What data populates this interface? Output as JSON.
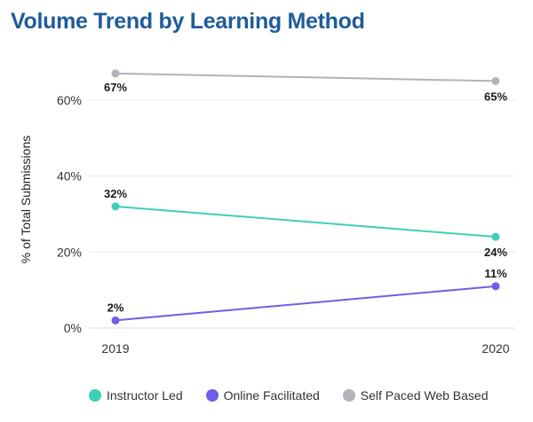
{
  "title": "Volume Trend by Learning Method",
  "chart_data": {
    "type": "line",
    "title": "Volume Trend by Learning Method",
    "xlabel": "",
    "ylabel": "% of Total Submissions",
    "x": [
      "2019",
      "2020"
    ],
    "y_ticks": [
      "0%",
      "20%",
      "40%",
      "60%"
    ],
    "ylim": [
      0,
      70
    ],
    "grid": true,
    "legend_position": "bottom",
    "series": [
      {
        "name": "Instructor Led",
        "color": "#3ecfb4",
        "values": [
          32,
          24
        ],
        "labels": [
          "32%",
          "24%"
        ]
      },
      {
        "name": "Online Facilitated",
        "color": "#6f5ee8",
        "values": [
          2,
          11
        ],
        "labels": [
          "2%",
          "11%"
        ]
      },
      {
        "name": "Self Paced Web Based",
        "color": "#b0b3b8",
        "values": [
          67,
          65
        ],
        "labels": [
          "67%",
          "65%"
        ]
      }
    ]
  }
}
